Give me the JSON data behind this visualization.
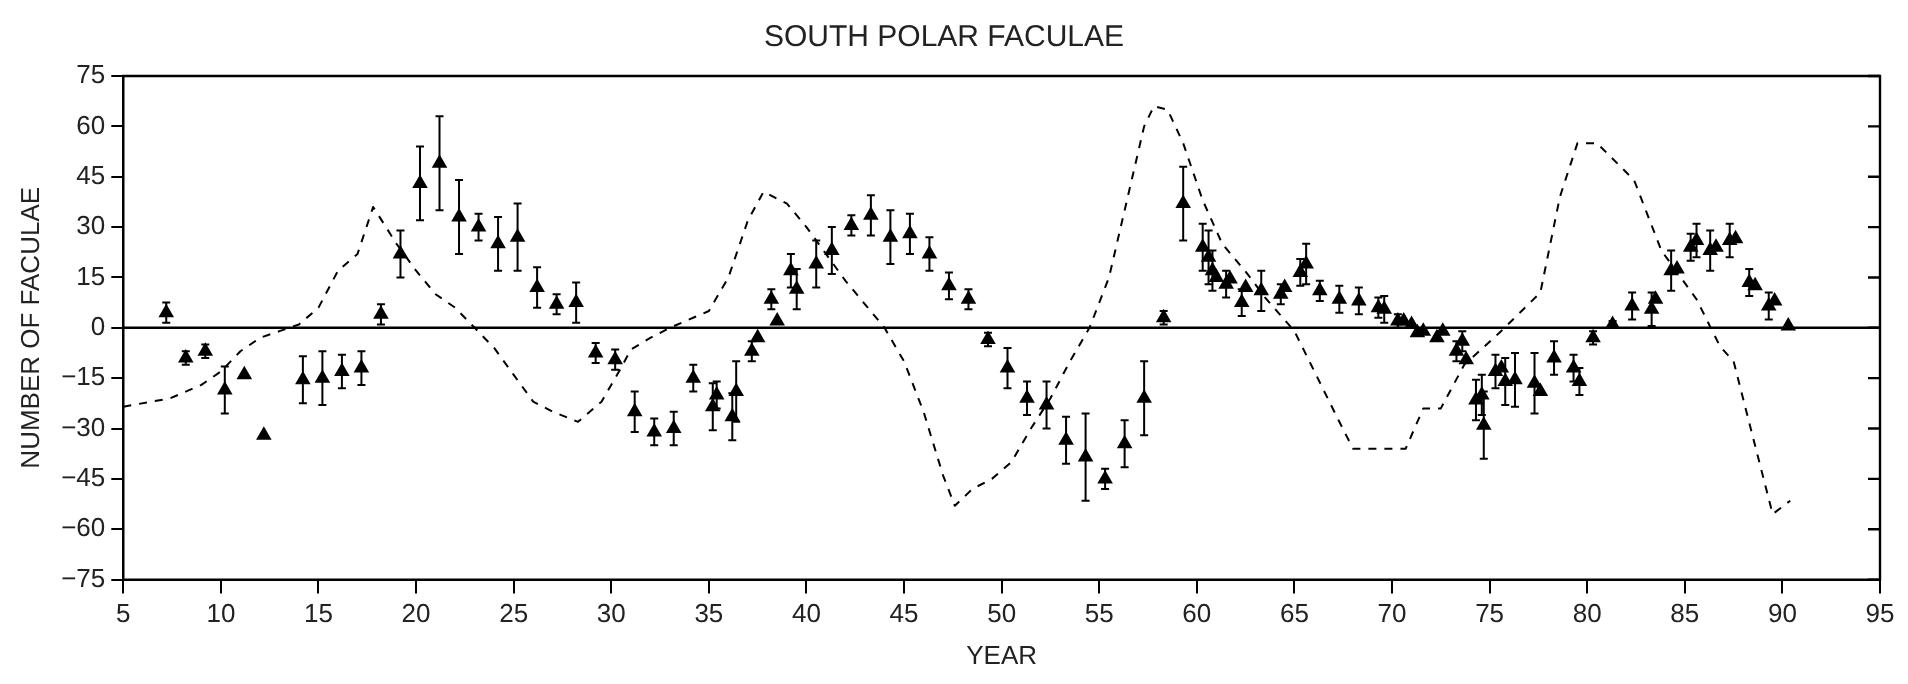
{
  "chart_data": {
    "type": "scatter",
    "title": "SOUTH POLAR FACULAE",
    "xlabel": "YEAR",
    "ylabel": "NUMBER OF FACULAE",
    "xlim": [
      5,
      95
    ],
    "xticks": [
      5,
      10,
      15,
      20,
      25,
      30,
      35,
      40,
      45,
      50,
      55,
      60,
      65,
      70,
      75,
      80,
      85,
      90,
      95
    ],
    "ylim": [
      -75,
      75
    ],
    "yticks": [
      -75,
      -60,
      -45,
      -30,
      -15,
      0,
      15,
      30,
      45,
      60,
      75
    ],
    "grid": false,
    "legend": false,
    "ref_lines": [
      {
        "axis": "y",
        "value": 0,
        "color": "#000000",
        "line_style": "solid"
      }
    ],
    "series": [
      {
        "color": "#000000",
        "marker": "triangle",
        "x": [
          7.2,
          8.2,
          9.2,
          10.2,
          11.2,
          12.2,
          14.2,
          15.2,
          16.2,
          17.2,
          18.2,
          19.2,
          20.2,
          21.2,
          22.2,
          23.2,
          24.2,
          25.2,
          26.2,
          27.2,
          28.2,
          29.2,
          30.2,
          31.2,
          32.2,
          33.2,
          34.2,
          35.2,
          35.4,
          36.2,
          36.4,
          37.2,
          37.5,
          38.2,
          38.5,
          39.2,
          39.5,
          40.5,
          41.3,
          42.3,
          43.3,
          44.3,
          45.3,
          46.3,
          47.3,
          48.3,
          49.3,
          50.3,
          51.3,
          52.3,
          53.3,
          54.3,
          55.3,
          56.3,
          57.3,
          58.3,
          59.3,
          60.3,
          60.6,
          60.8,
          61.0,
          61.5,
          61.7,
          62.3,
          62.5,
          63.3,
          64.3,
          64.5,
          65.3,
          65.6,
          66.3,
          67.3,
          68.3,
          69.3,
          69.6,
          70.3,
          70.6,
          71.0,
          71.3,
          71.6,
          72.3,
          72.6,
          73.3,
          73.6,
          73.8,
          74.3,
          74.6,
          74.7,
          75.3,
          75.6,
          75.8,
          76.3,
          77.3,
          77.6,
          78.3,
          79.3,
          79.6,
          80.3,
          81.3,
          82.3,
          83.3,
          83.5,
          84.3,
          84.6,
          85.3,
          85.6,
          86.3,
          86.6,
          87.3,
          87.6,
          88.3,
          88.6,
          89.3,
          89.6,
          90.3
        ],
        "values": [
          4.5,
          -9,
          -7,
          -18.5,
          -14,
          -32,
          -15.5,
          -15,
          -13,
          -12,
          4,
          22,
          43,
          49,
          33,
          30,
          25,
          27,
          12,
          7,
          7.5,
          -7.5,
          -9.5,
          -25,
          -31,
          -30,
          -15,
          -23.5,
          -20,
          -26.5,
          -19,
          -7,
          -3,
          8.5,
          2,
          17,
          11.5,
          19,
          23,
          30.5,
          33.5,
          27,
          28,
          22,
          12.5,
          8.5,
          -3.5,
          -12,
          -21,
          -23,
          -33.5,
          -38.5,
          -45,
          -34.5,
          -21,
          3,
          37,
          24,
          21,
          17,
          15,
          13,
          14.5,
          7.5,
          12,
          11,
          10,
          12,
          16.5,
          19,
          11,
          8.5,
          8,
          6,
          5.5,
          2,
          2,
          1,
          -1.5,
          -1,
          -3,
          -1,
          -7,
          -4,
          -9.5,
          -21.5,
          -20,
          -29,
          -13,
          -12,
          -16,
          -15.5,
          -16.5,
          -19,
          -9,
          -12,
          -16,
          -3,
          1,
          6.5,
          5.5,
          8.5,
          17,
          17.5,
          24,
          26,
          23,
          24,
          26,
          26.5,
          13.5,
          12.5,
          6.5,
          8,
          0.5
        ],
        "errors": [
          3,
          2,
          2,
          7,
          null,
          null,
          7,
          8,
          5,
          5,
          3,
          7,
          11,
          14,
          11,
          4,
          8,
          10,
          6,
          3,
          6,
          3,
          3,
          6,
          4,
          5,
          4,
          7,
          4,
          7,
          9,
          3,
          null,
          3,
          null,
          5,
          6,
          7,
          7,
          3,
          6,
          8,
          6,
          5,
          4,
          3,
          2,
          6,
          5,
          7,
          7,
          13,
          3,
          7,
          11,
          2,
          11,
          7,
          8,
          6,
          null,
          4,
          null,
          4,
          null,
          6,
          3,
          null,
          4,
          6,
          3,
          4,
          4,
          3,
          4,
          2,
          null,
          null,
          null,
          null,
          null,
          null,
          3,
          3,
          null,
          6,
          6,
          10,
          5,
          null,
          7,
          8,
          9,
          null,
          5,
          4,
          4,
          2,
          1,
          4,
          5,
          null,
          6,
          null,
          4,
          5,
          6,
          null,
          5,
          null,
          4,
          null,
          4,
          null,
          null
        ]
      },
      {
        "type": "line",
        "color": "#000000",
        "line_style": "dashed",
        "marker": "none",
        "x": [
          5,
          7.4,
          9,
          10,
          11,
          12,
          13,
          14,
          15,
          16,
          17,
          17.8,
          19,
          20,
          21,
          22,
          23,
          24,
          25,
          26,
          27,
          28.3,
          29.5,
          30.5,
          31,
          32,
          33,
          34,
          35,
          36,
          37,
          37.8,
          39,
          40,
          41,
          42,
          43,
          44,
          45,
          46,
          47,
          47.6,
          48.5,
          49.5,
          50.5,
          51.5,
          52.5,
          53.5,
          54.5,
          55.5,
          56.5,
          57.3,
          57.8,
          58.5,
          59.3,
          60.3,
          61.3,
          62.6,
          63.5,
          65,
          67.3,
          68,
          70.7,
          71.6,
          72.5,
          73.7,
          75.5,
          77.6,
          78.6,
          79.5,
          80.5,
          82.4,
          83.8,
          85.6,
          86.8,
          87.5,
          88.2,
          89.5,
          90.4
        ],
        "values": [
          -23.5,
          -21,
          -17,
          -13,
          -7,
          -3,
          -1,
          1,
          6,
          17,
          22,
          36,
          25,
          17,
          10,
          6,
          0,
          -6,
          -14,
          -22,
          -25,
          -28,
          -22,
          -12,
          -6.5,
          -3,
          0,
          2.5,
          5,
          15,
          32,
          40.5,
          37,
          30,
          22,
          14,
          7,
          0,
          -10,
          -25,
          -44,
          -53,
          -48,
          -45,
          -40,
          -30,
          -21,
          -10,
          0,
          15,
          40,
          60,
          66,
          65,
          55,
          38,
          25,
          16,
          9,
          -1,
          -28,
          -36,
          -36,
          -24,
          -24,
          -11,
          -1.5,
          10.5,
          39,
          55,
          55,
          44,
          23,
          8.5,
          -5.5,
          -10,
          -26,
          -55.5,
          -51.5
        ]
      }
    ]
  }
}
